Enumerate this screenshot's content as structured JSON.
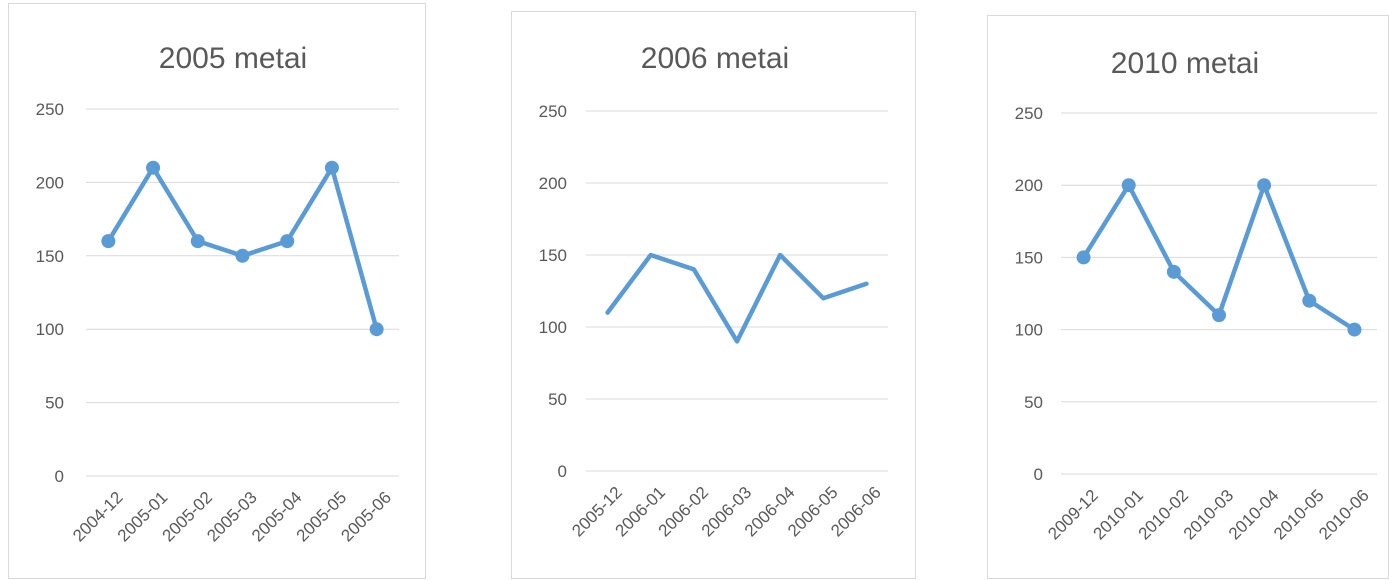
{
  "chart_data": [
    {
      "type": "line",
      "title": "2005 metai",
      "categories": [
        "2004-12",
        "2005-01",
        "2005-02",
        "2005-03",
        "2005-04",
        "2005-05",
        "2005-06"
      ],
      "series": [
        {
          "values": [
            160,
            210,
            160,
            150,
            160,
            210,
            100
          ]
        }
      ],
      "ylim": [
        0,
        250
      ],
      "yticks": [
        0,
        50,
        100,
        150,
        200,
        250
      ],
      "markers": true,
      "grid": true,
      "legend": "none"
    },
    {
      "type": "line",
      "title": "2006 metai",
      "categories": [
        "2005-12",
        "2006-01",
        "2006-02",
        "2006-03",
        "2006-04",
        "2006-05",
        "2006-06"
      ],
      "series": [
        {
          "values": [
            110,
            150,
            140,
            90,
            150,
            120,
            130
          ]
        }
      ],
      "ylim": [
        0,
        250
      ],
      "yticks": [
        0,
        50,
        100,
        150,
        200,
        250
      ],
      "markers": false,
      "grid": true,
      "legend": "none"
    },
    {
      "type": "line",
      "title": "2010 metai",
      "categories": [
        "2009-12",
        "2010-01",
        "2010-02",
        "2010-03",
        "2010-04",
        "2010-05",
        "2010-06"
      ],
      "series": [
        {
          "values": [
            150,
            200,
            140,
            110,
            200,
            120,
            100
          ]
        }
      ],
      "ylim": [
        0,
        250
      ],
      "yticks": [
        0,
        50,
        100,
        150,
        200,
        250
      ],
      "markers": true,
      "grid": true,
      "legend": "none"
    }
  ],
  "colors": {
    "series": "#5b9bd5",
    "grid": "#d9d9d9",
    "text": "#595959"
  }
}
